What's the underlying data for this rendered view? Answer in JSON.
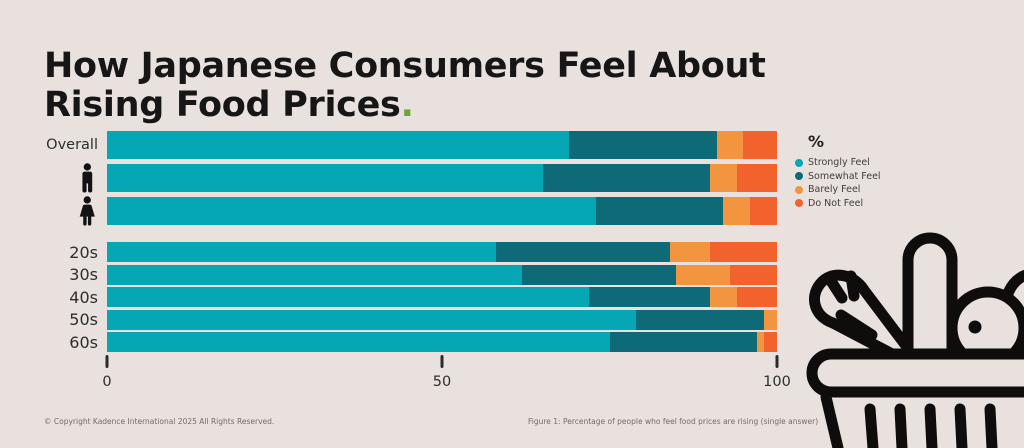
{
  "header": {
    "title_line1": "How Japanese Consumers Feel About",
    "title_line2": "Rising Food Prices",
    "title_accent": ".",
    "accent_color": "#6CA63B"
  },
  "colors": {
    "background": "#E8E1DE",
    "title_text": "#161616",
    "illustration": "#0E0D0B"
  },
  "chart_data": {
    "type": "bar",
    "orientation": "horizontal",
    "stacked": true,
    "unit_label": "%",
    "xlim": [
      0,
      100
    ],
    "x_ticks": [
      "0",
      "50",
      "100"
    ],
    "x_tick_values": [
      0,
      50,
      100
    ],
    "grid": false,
    "legend_position": "right",
    "legend": [
      {
        "label": "Strongly Feel",
        "color": "#04A7B3"
      },
      {
        "label": "Somewhat Feel",
        "color": "#0D6A76"
      },
      {
        "label": "Barely Feel",
        "color": "#F3953E"
      },
      {
        "label": "Do Not Feel",
        "color": "#F2622C"
      }
    ],
    "rows": [
      {
        "id": "overall",
        "label": "Overall",
        "icon": null,
        "group": "main",
        "values": [
          69,
          22,
          4,
          5
        ]
      },
      {
        "id": "men",
        "label": "",
        "icon": "man",
        "group": "main",
        "values": [
          65,
          25,
          4,
          6
        ]
      },
      {
        "id": "women",
        "label": "",
        "icon": "woman",
        "group": "main",
        "values": [
          73,
          19,
          4,
          4
        ]
      },
      {
        "id": "20s",
        "label": "20s",
        "icon": null,
        "group": "age",
        "values": [
          58,
          26,
          6,
          10
        ]
      },
      {
        "id": "30s",
        "label": "30s",
        "icon": null,
        "group": "age",
        "values": [
          62,
          23,
          8,
          7
        ]
      },
      {
        "id": "40s",
        "label": "40s",
        "icon": null,
        "group": "age",
        "values": [
          72,
          18,
          4,
          6
        ]
      },
      {
        "id": "50s",
        "label": "50s",
        "icon": null,
        "group": "age",
        "values": [
          79,
          19,
          2,
          0
        ]
      },
      {
        "id": "60s",
        "label": "60s",
        "icon": null,
        "group": "age",
        "values": [
          75,
          22,
          1,
          2
        ]
      }
    ]
  },
  "footer": {
    "copyright": "© Copyright Kadence International 2025 All Rights Reserved.",
    "figure_caption": "Figure 1: Percentage of people who feel food prices are rising (single answer)"
  }
}
